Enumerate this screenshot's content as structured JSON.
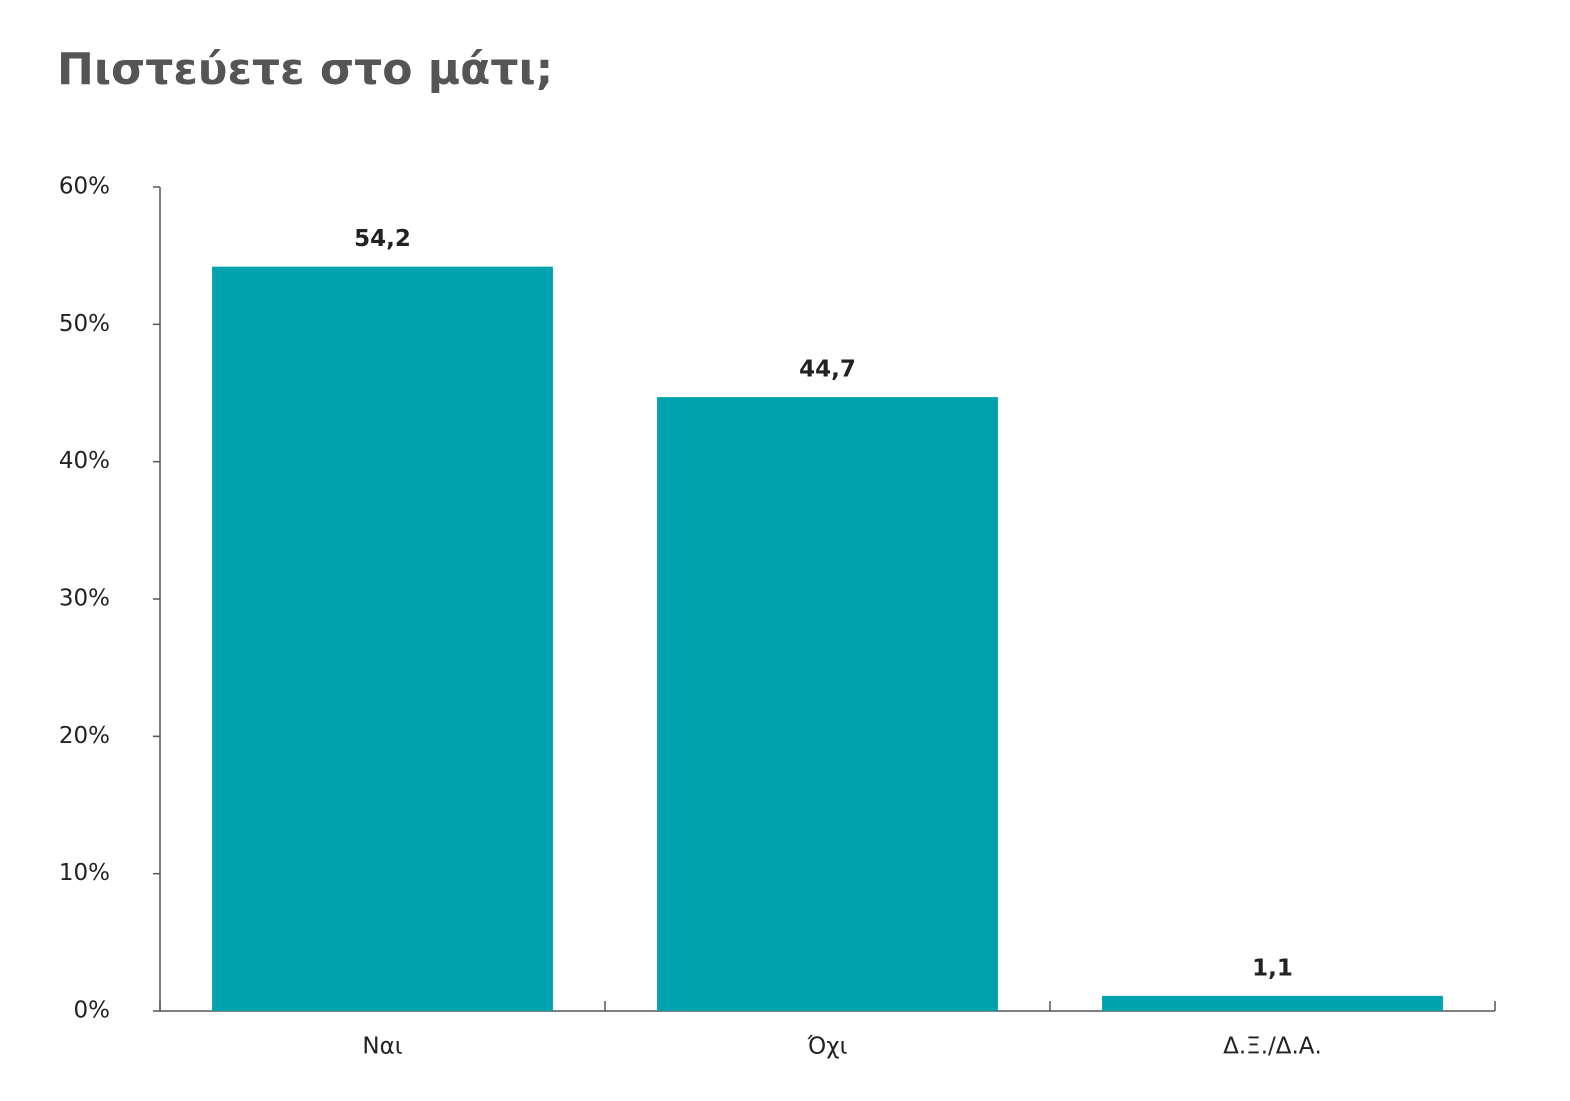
{
  "chart_data": {
    "type": "bar",
    "title": "Πιστεύετε στο μάτι;",
    "categories": [
      "Ναι",
      "Όχι",
      "Δ.Ξ./Δ.Α."
    ],
    "values": [
      54.2,
      44.7,
      1.1
    ],
    "value_labels": [
      "54,2",
      "44,7",
      "1,1"
    ],
    "color": "#00a3ad",
    "ylim": [
      0,
      60
    ],
    "yticks": [
      {
        "value": 0,
        "label": "0%"
      },
      {
        "value": 10,
        "label": "10%"
      },
      {
        "value": 20,
        "label": "20%"
      },
      {
        "value": 30,
        "label": "30%"
      },
      {
        "value": 40,
        "label": "40%"
      },
      {
        "value": 50,
        "label": "50%"
      },
      {
        "value": 60,
        "label": "60%"
      }
    ],
    "grid": false
  }
}
